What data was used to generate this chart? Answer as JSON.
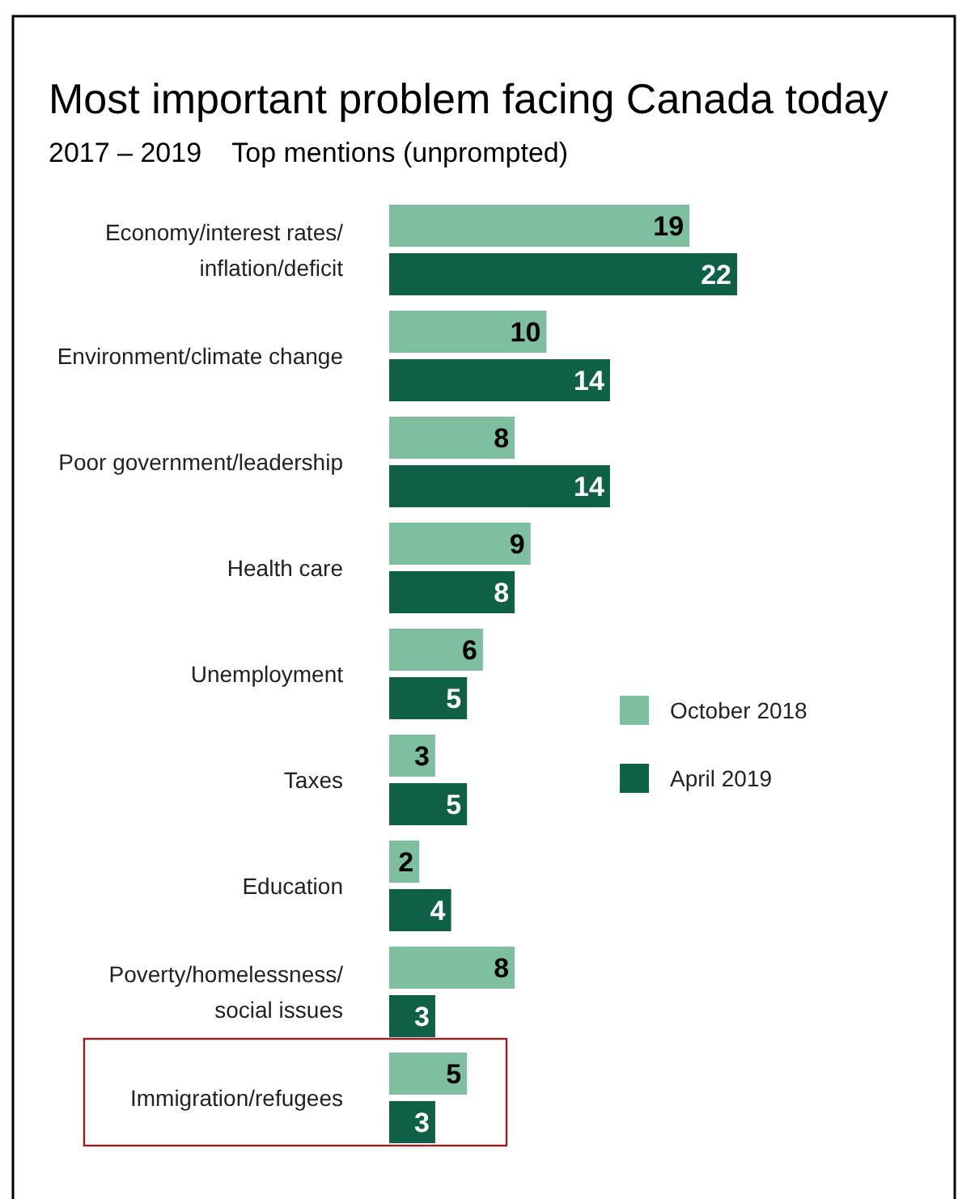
{
  "chart_data": {
    "type": "bar",
    "orientation": "horizontal",
    "title": "Most important problem facing Canada today",
    "subtitle": "2017 – 2019    Top mentions (unprompted)",
    "categories": [
      "Economy/interest rates/\ninflation/deficit",
      "Environment/climate change",
      "Poor government/leadership",
      "Health care",
      "Unemployment",
      "Taxes",
      "Education",
      "Poverty/homelessness/\nsocial issues",
      "Immigration/refugees"
    ],
    "series": [
      {
        "name": "October 2018",
        "color": "#7dbf9e",
        "values": [
          19,
          10,
          8,
          9,
          6,
          3,
          2,
          8,
          5
        ]
      },
      {
        "name": "April 2019",
        "color": "#0e6047",
        "values": [
          22,
          14,
          14,
          8,
          5,
          5,
          4,
          3,
          3
        ]
      }
    ],
    "data_labels": true,
    "legend": "right"
  }
}
